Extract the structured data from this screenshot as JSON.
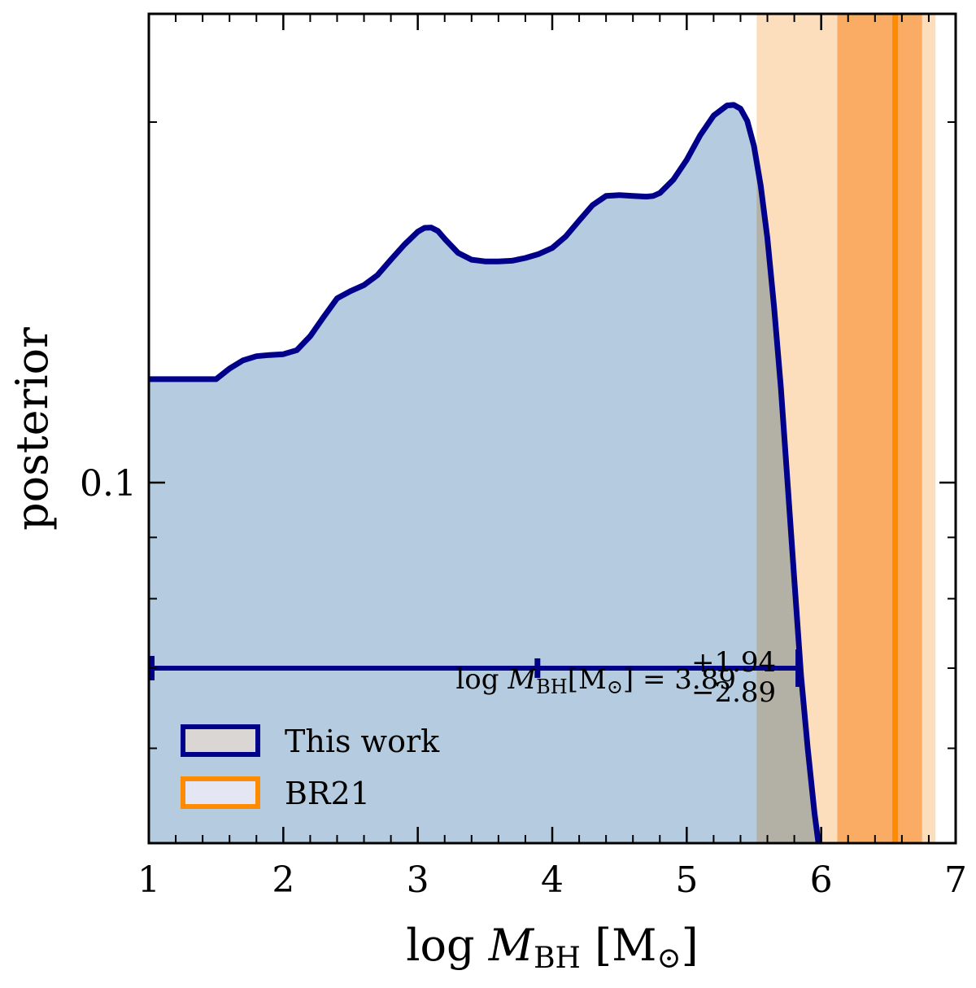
{
  "chart_data": {
    "type": "area",
    "title": "",
    "xlabel": {
      "pre": "log ",
      "var": "M",
      "sub": "BH",
      "unit": "[M",
      "unit_sub": "⊙",
      "close": "]"
    },
    "ylabel": "posterior",
    "xlim": [
      1,
      7
    ],
    "ylim": [
      0.05,
      0.5
    ],
    "yscale": "log",
    "x_ticks": [
      "1",
      "2",
      "3",
      "4",
      "5",
      "6",
      "7"
    ],
    "y_tick_labels": [
      {
        "value": 0.1,
        "label": "0.1"
      }
    ],
    "grid": false,
    "series": [
      {
        "name": "This work",
        "color": "#00008b",
        "fill": "#b5cce0",
        "x": [
          1.0,
          1.5,
          1.6,
          1.7,
          1.8,
          1.9,
          2.0,
          2.1,
          2.2,
          2.3,
          2.4,
          2.5,
          2.6,
          2.7,
          2.8,
          2.9,
          3.0,
          3.05,
          3.1,
          3.15,
          3.2,
          3.3,
          3.4,
          3.5,
          3.6,
          3.7,
          3.8,
          3.9,
          4.0,
          4.1,
          4.2,
          4.3,
          4.4,
          4.5,
          4.6,
          4.7,
          4.75,
          4.8,
          4.9,
          5.0,
          5.1,
          5.2,
          5.3,
          5.35,
          5.4,
          5.45,
          5.5,
          5.55,
          5.6,
          5.65,
          5.7,
          5.75,
          5.8,
          5.85,
          5.9,
          5.95,
          6.0
        ],
        "y": [
          0.122,
          0.122,
          0.1245,
          0.1265,
          0.1275,
          0.1278,
          0.128,
          0.129,
          0.1325,
          0.1375,
          0.1425,
          0.1445,
          0.1462,
          0.149,
          0.1535,
          0.158,
          0.162,
          0.1632,
          0.1633,
          0.1622,
          0.1598,
          0.1555,
          0.1535,
          0.153,
          0.153,
          0.1532,
          0.154,
          0.1552,
          0.157,
          0.1605,
          0.1655,
          0.1705,
          0.1735,
          0.1738,
          0.1735,
          0.1733,
          0.1735,
          0.1745,
          0.179,
          0.186,
          0.195,
          0.2025,
          0.2065,
          0.2067,
          0.2052,
          0.2005,
          0.191,
          0.177,
          0.16,
          0.14,
          0.12,
          0.1,
          0.083,
          0.069,
          0.06,
          0.053,
          0.048
        ]
      },
      {
        "name": "BR21",
        "color": "#ff8c00",
        "fill": "#fdd9b0",
        "median": 6.55,
        "inner_band": [
          6.12,
          6.75
        ],
        "outer_band": [
          5.52,
          6.85
        ]
      }
    ],
    "errorbar": {
      "center": 3.89,
      "low": 1.0,
      "high": 5.83,
      "y": 0.07,
      "color": "#00008b"
    },
    "annotation": {
      "pre": "log ",
      "var": "M",
      "sub": "BH",
      "mid": "[M",
      "mid_sub": "⊙",
      "eq": "] = 3.89",
      "sup": "+1.94",
      "sub2": "−2.89"
    },
    "legend": {
      "placement": "lower-left",
      "entries": [
        {
          "label": "This work",
          "edge": "#00008b",
          "face": "#d9d6d3"
        },
        {
          "label": "BR21",
          "edge": "#ff8c00",
          "face": "#e4e6f4"
        }
      ]
    }
  }
}
